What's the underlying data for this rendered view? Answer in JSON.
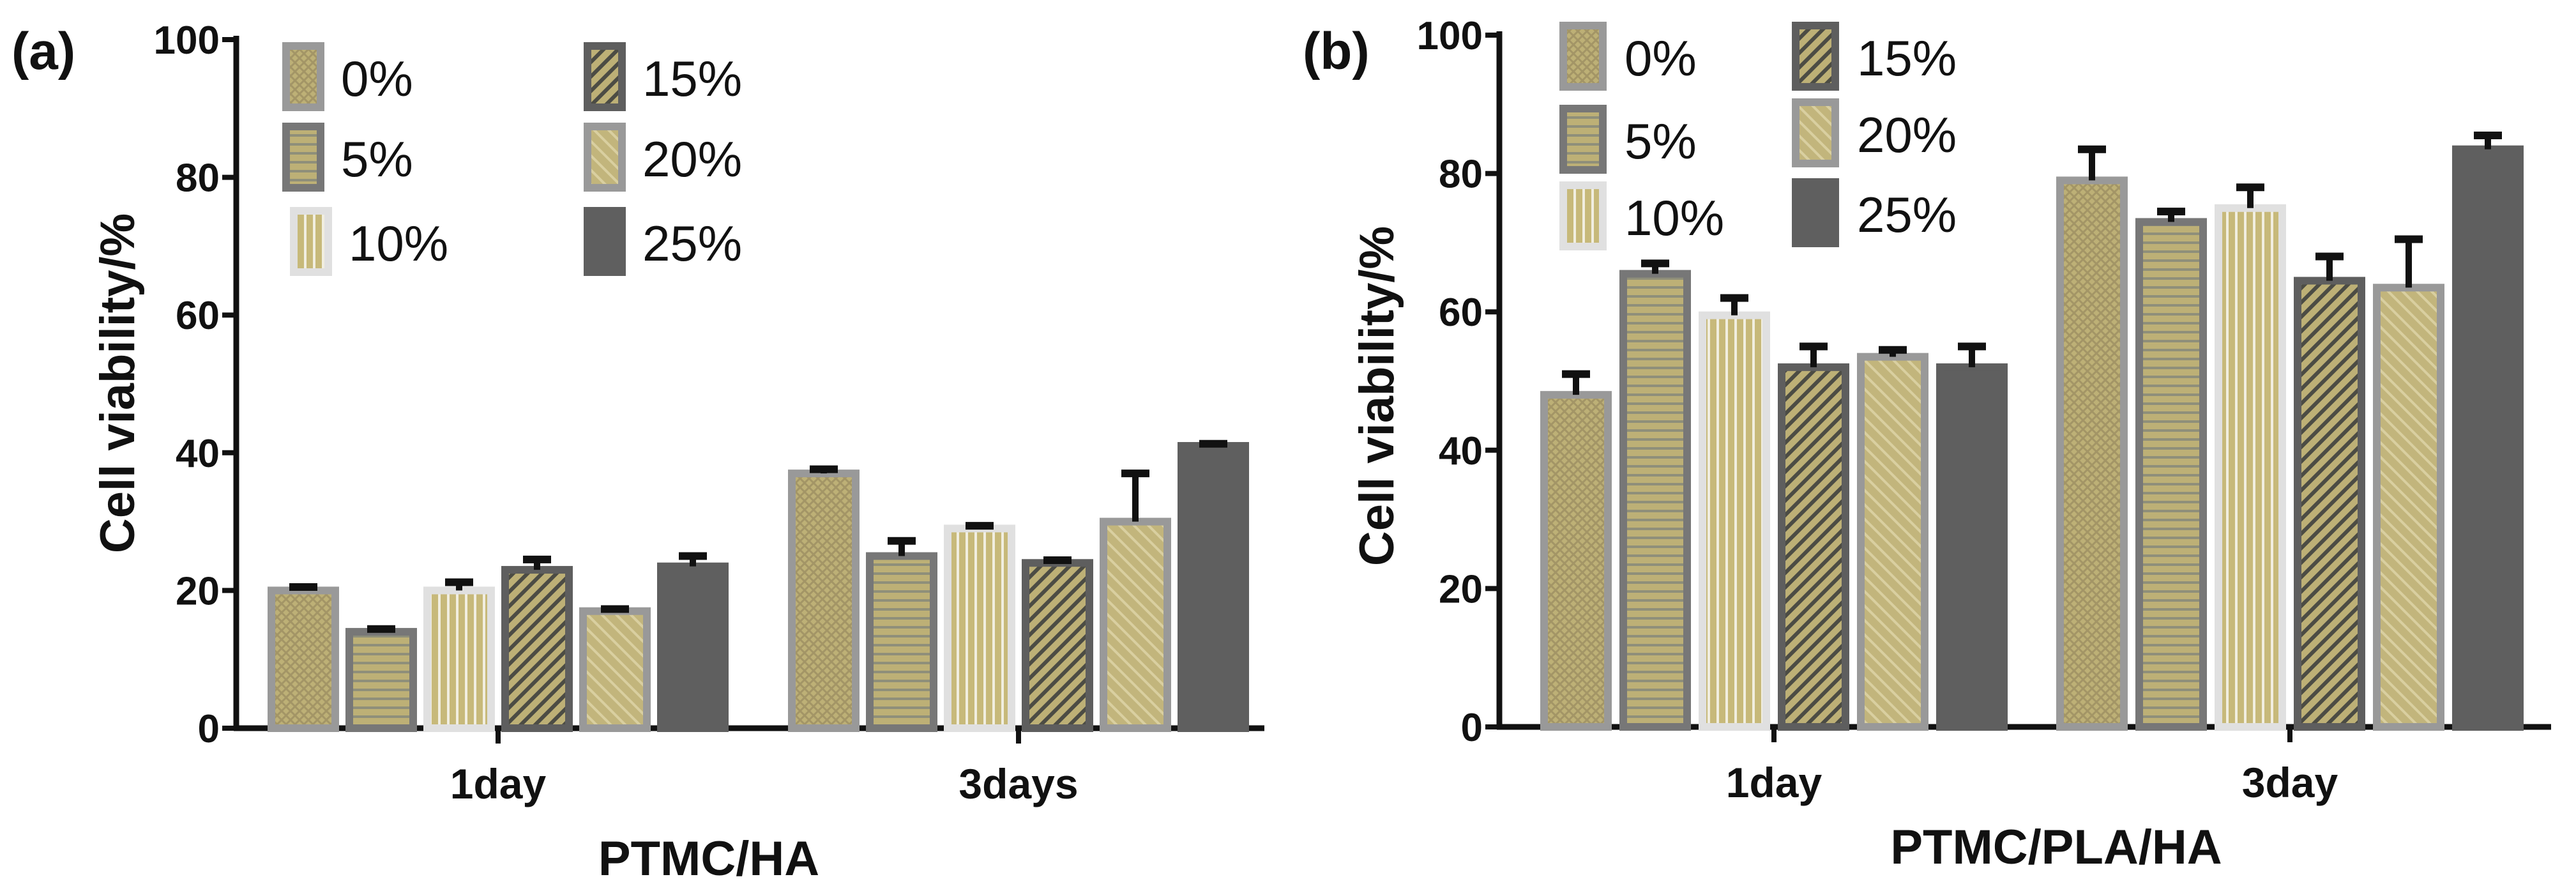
{
  "chart_data": [
    {
      "panel_label": "(a)",
      "type": "bar",
      "title": "",
      "xlabel": "PTMC/HA",
      "ylabel": "Cell viability/%",
      "ylim": [
        0,
        100
      ],
      "yticks": [
        "0",
        "20",
        "40",
        "60",
        "80",
        "100"
      ],
      "categories": [
        "1day",
        "3days"
      ],
      "legend_position": "top-left",
      "legend_columns": 2,
      "series": [
        {
          "name": "0%",
          "values": [
            20,
            37
          ],
          "errors": [
            0.5,
            0.6
          ]
        },
        {
          "name": "5%",
          "values": [
            14,
            25
          ],
          "errors": [
            0.4,
            2.2
          ]
        },
        {
          "name": "10%",
          "values": [
            20,
            29
          ],
          "errors": [
            1.2,
            0.4
          ]
        },
        {
          "name": "15%",
          "values": [
            23,
            24
          ],
          "errors": [
            1.5,
            0.4
          ]
        },
        {
          "name": "20%",
          "values": [
            17,
            30
          ],
          "errors": [
            0.3,
            7.0
          ]
        },
        {
          "name": "25%",
          "values": [
            23.5,
            41
          ],
          "errors": [
            1.5,
            0.3
          ]
        }
      ]
    },
    {
      "panel_label": "(b)",
      "type": "bar",
      "title": "",
      "xlabel": "PTMC/PLA/HA",
      "ylabel": "Cell viability/%",
      "ylim": [
        0,
        100
      ],
      "yticks": [
        "0",
        "20",
        "40",
        "60",
        "80",
        "100"
      ],
      "categories": [
        "1day",
        "3day"
      ],
      "legend_position": "top-left",
      "legend_columns": 2,
      "series": [
        {
          "name": "0%",
          "values": [
            48,
            79
          ],
          "errors": [
            3,
            4.5
          ]
        },
        {
          "name": "5%",
          "values": [
            65.5,
            73
          ],
          "errors": [
            1.5,
            1.5
          ]
        },
        {
          "name": "10%",
          "values": [
            59.5,
            75
          ],
          "errors": [
            2.5,
            3
          ]
        },
        {
          "name": "15%",
          "values": [
            52,
            64.5
          ],
          "errors": [
            3,
            3.5
          ]
        },
        {
          "name": "20%",
          "values": [
            53.5,
            63.5
          ],
          "errors": [
            1,
            7
          ]
        },
        {
          "name": "25%",
          "values": [
            52,
            83.5
          ],
          "errors": [
            3,
            2
          ]
        }
      ]
    }
  ],
  "series_styles": [
    {
      "fill": "#bdb076",
      "border": "#999999",
      "pattern": "cross",
      "pattern_color": "#a39566"
    },
    {
      "fill": "#bdb076",
      "border": "#777777",
      "pattern": "horizontal",
      "pattern_color": "#8f8f7a"
    },
    {
      "fill": "#c7b97a",
      "border": "#e0e0e0",
      "pattern": "vertical",
      "pattern_color": "#f1eee0"
    },
    {
      "fill": "#bdb076",
      "border": "#5e5e5e",
      "pattern": "diagonal",
      "pattern_color": "#4c4c44"
    },
    {
      "fill": "#c2b57c",
      "border": "#999999",
      "pattern": "diagonal-light",
      "pattern_color": "#d9cfa0"
    },
    {
      "fill": "#5f5f5f",
      "border": "#5f5f5f",
      "pattern": "none",
      "pattern_color": "#5f5f5f"
    }
  ],
  "colors": {
    "axis": "#111111",
    "error_bar": "#111111"
  }
}
